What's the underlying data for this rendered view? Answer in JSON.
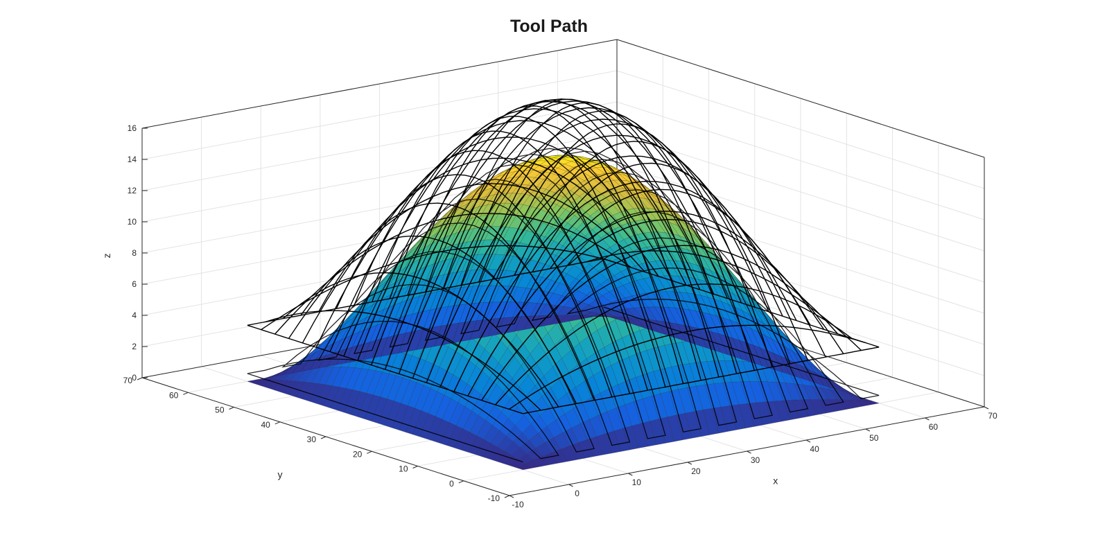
{
  "figure": {
    "title": "Tool Path"
  },
  "chart_data": {
    "type": "surface",
    "title": "Tool Path",
    "xlabel": "x",
    "ylabel": "y",
    "zlabel": "z",
    "xlim": [
      -10,
      70
    ],
    "ylim": [
      -10,
      70
    ],
    "zlim": [
      0,
      16
    ],
    "xticks": [
      -10,
      0,
      10,
      20,
      30,
      40,
      50,
      60,
      70
    ],
    "yticks": [
      -10,
      0,
      10,
      20,
      30,
      40,
      50,
      60,
      70
    ],
    "zticks": [
      0,
      2,
      4,
      6,
      8,
      10,
      12,
      14,
      16
    ],
    "grid": true,
    "colormap": "parula",
    "series": [
      {
        "type": "surface",
        "function": "z = 15 * (1 - ((x-30)/30)^2) * (1 - ((y-30)/30)^2)",
        "x_range": [
          0,
          60
        ],
        "y_range": [
          0,
          60
        ],
        "peak_z": 15,
        "edge_color": "#1a1a1a"
      },
      {
        "type": "mesh",
        "function": "z = surface + 3.6",
        "x_range": [
          0,
          60
        ],
        "y_range": [
          0,
          60
        ],
        "color": "#000000"
      },
      {
        "type": "line",
        "description": "zig-zag tool path following x direction between surface and mesh",
        "color": "#000000"
      }
    ]
  }
}
